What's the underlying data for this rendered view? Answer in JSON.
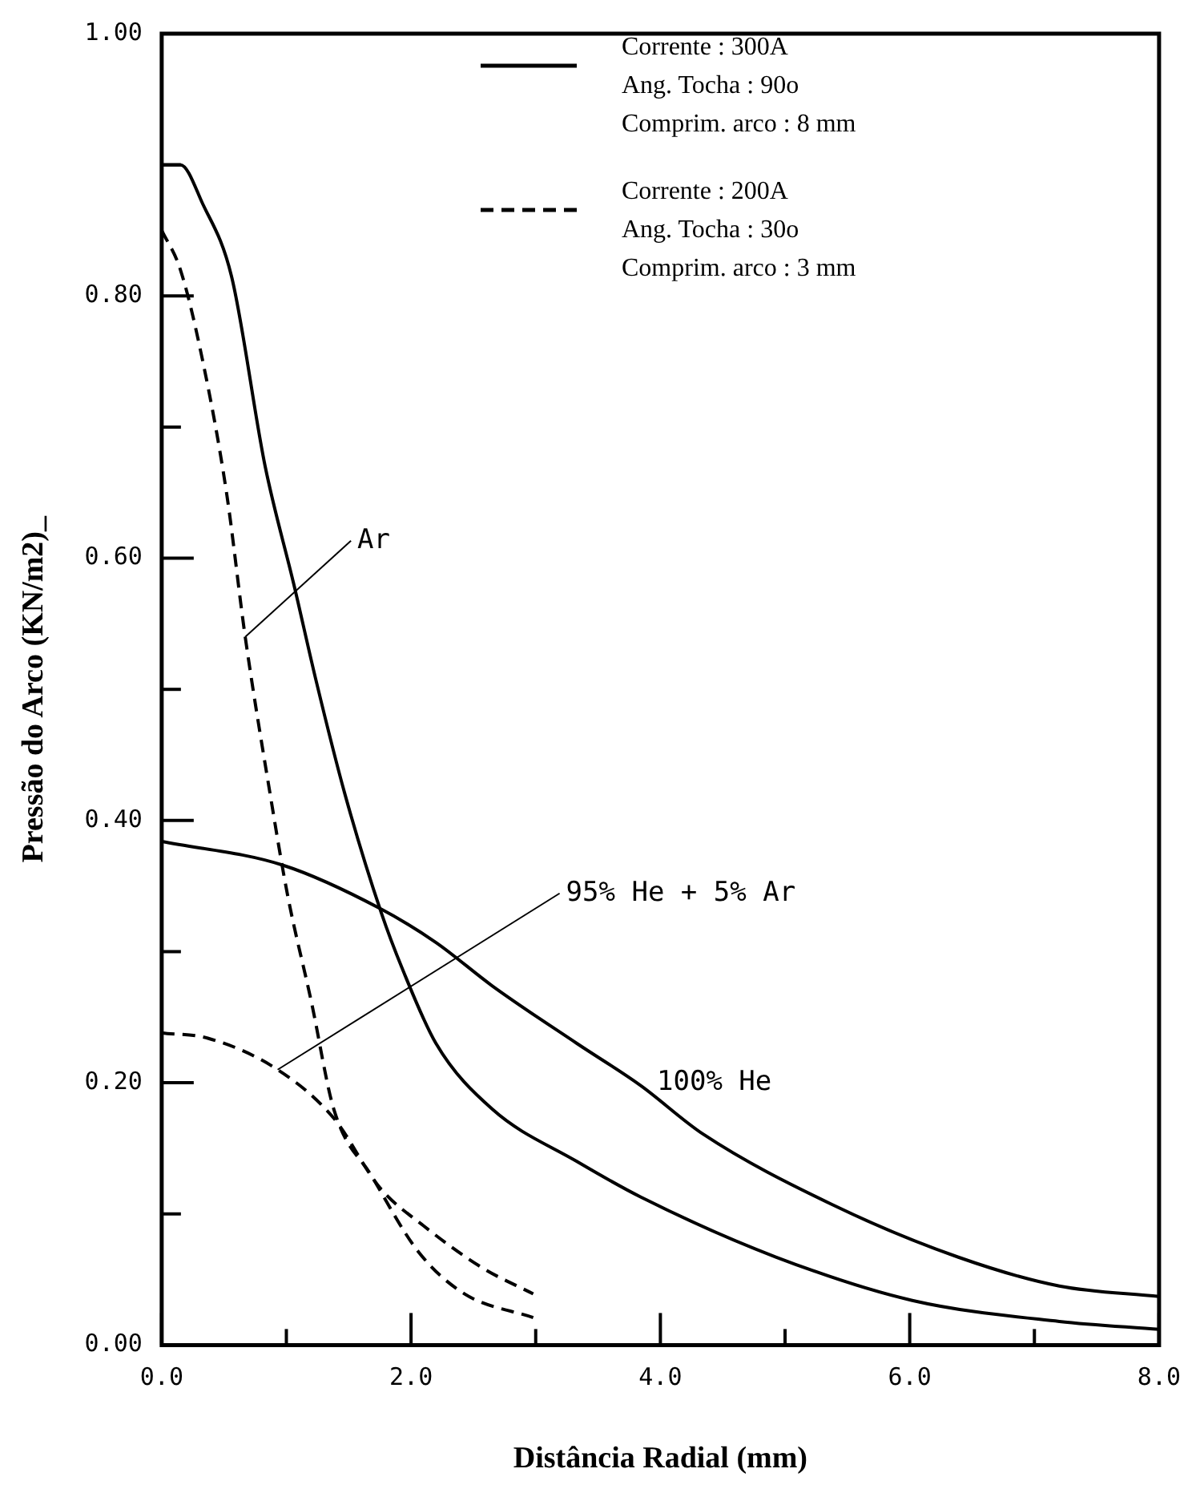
{
  "chart_data": {
    "type": "line",
    "xlabel": "Distância Radial (mm)",
    "ylabel": "Pressão do Arco (KN/m2)_",
    "xlim": [
      0,
      8
    ],
    "ylim": [
      0,
      1
    ],
    "xticks": [
      {
        "value": 0,
        "label": "0.0"
      },
      {
        "value": 1,
        "label": null
      },
      {
        "value": 2,
        "label": "2.0"
      },
      {
        "value": 3,
        "label": null
      },
      {
        "value": 4,
        "label": "4.0"
      },
      {
        "value": 5,
        "label": null
      },
      {
        "value": 6,
        "label": "6.0"
      },
      {
        "value": 7,
        "label": null
      },
      {
        "value": 8,
        "label": "8.0"
      }
    ],
    "yticks": [
      {
        "value": 0,
        "label": "0.00"
      },
      {
        "value": 0.1,
        "label": null
      },
      {
        "value": 0.2,
        "label": "0.20"
      },
      {
        "value": 0.3,
        "label": null
      },
      {
        "value": 0.4,
        "label": "0.40"
      },
      {
        "value": 0.5,
        "label": null
      },
      {
        "value": 0.6,
        "label": "0.60"
      },
      {
        "value": 0.7,
        "label": null
      },
      {
        "value": 0.8,
        "label": "0.80"
      },
      {
        "value": 0.9,
        "label": null
      },
      {
        "value": 1,
        "label": "1.00"
      }
    ],
    "grid": false,
    "legend": false,
    "marker": "none",
    "series": [
      {
        "color": "#000000",
        "line_style": "solid",
        "x": [
          0,
          0.15,
          0.33,
          0.56,
          0.83,
          1.06,
          1.24,
          1.47,
          1.76,
          1.93,
          2.2,
          2.65,
          3.33,
          3.84,
          4.93,
          6.02,
          7.2,
          8
        ],
        "values": [
          0.9,
          0.9,
          0.87,
          0.815,
          0.67,
          0.58,
          0.506,
          0.42,
          0.33,
          0.287,
          0.23,
          0.18,
          0.14,
          0.113,
          0.067,
          0.034,
          0.018,
          0.012
        ]
      },
      {
        "color": "#000000",
        "line_style": "solid",
        "x": [
          0,
          0.97,
          1.75,
          2.2,
          2.65,
          3.33,
          3.84,
          4.34,
          5.38,
          6.39,
          7.2,
          8
        ],
        "values": [
          0.384,
          0.366,
          0.333,
          0.307,
          0.274,
          0.23,
          0.198,
          0.161,
          0.107,
          0.067,
          0.045,
          0.037
        ]
      },
      {
        "color": "#000000",
        "line_style": "dashed",
        "x": [
          0,
          0.15,
          0.33,
          0.52,
          0.67,
          0.87,
          1.01,
          1.2,
          1.38,
          1.69,
          2.06,
          2.43,
          2.98
        ],
        "values": [
          0.85,
          0.82,
          0.75,
          0.65,
          0.54,
          0.42,
          0.343,
          0.262,
          0.18,
          0.128,
          0.071,
          0.039,
          0.021
        ]
      },
      {
        "color": "#000000",
        "line_style": "dashed",
        "x": [
          0,
          0.37,
          0.93,
          1.38,
          1.75,
          2.1,
          2.57,
          2.98
        ],
        "values": [
          0.238,
          0.234,
          0.21,
          0.173,
          0.12,
          0.091,
          0.059,
          0.039
        ]
      }
    ],
    "annotations": [
      "Corrente : 300A",
      "Ang. Tocha : 90o",
      "Comprim. arco : 8 mm",
      "Corrente : 200A",
      "Ang. Tocha : 30o",
      "Comprim. arco : 3 mm",
      {
        "text": "Ar",
        "x": 0.67,
        "y": 0.54
      },
      {
        "text": "95% He + 5% Ar",
        "x": 0.93,
        "y": 0.21
      },
      "100% He"
    ]
  }
}
